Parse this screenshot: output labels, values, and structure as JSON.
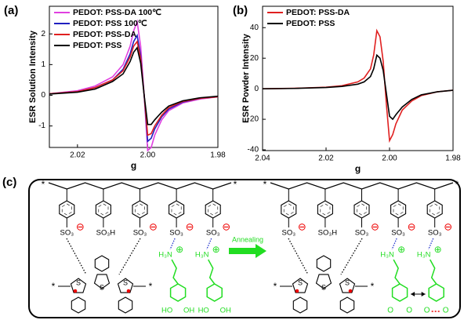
{
  "chart_data": [
    {
      "type": "line",
      "panel_label": "(a)",
      "y_label": "ESR Solution Intensity",
      "x_label": "g",
      "x": [
        2.028,
        2.02,
        2.015,
        2.01,
        2.007,
        2.005,
        2.004,
        2.003,
        2.002,
        2.001,
        2.0,
        1.999,
        1.998,
        1.996,
        1.994,
        1.99,
        1.985,
        1.98
      ],
      "series": [
        {
          "name": "PEDOT: PSS-DA 100℃",
          "color": "#e040e0",
          "values": [
            0.05,
            0.15,
            0.3,
            0.6,
            1.0,
            1.6,
            2.1,
            2.4,
            1.6,
            0.0,
            -1.8,
            -1.7,
            -1.3,
            -0.8,
            -0.5,
            -0.25,
            -0.12,
            -0.05
          ]
        },
        {
          "name": "PEDOT: PSS 100℃",
          "color": "#2020c0",
          "values": [
            0.05,
            0.12,
            0.25,
            0.5,
            0.85,
            1.35,
            1.75,
            1.95,
            1.3,
            0.0,
            -1.5,
            -1.4,
            -1.1,
            -0.7,
            -0.45,
            -0.22,
            -0.1,
            -0.05
          ]
        },
        {
          "name": "PEDOT: PSS-DA",
          "color": "#e02020",
          "values": [
            0.05,
            0.12,
            0.25,
            0.5,
            0.8,
            1.25,
            1.6,
            1.75,
            1.2,
            0.0,
            -1.3,
            -1.25,
            -1.0,
            -0.65,
            -0.4,
            -0.2,
            -0.1,
            -0.05
          ]
        },
        {
          "name": "PEDOT: PSS",
          "color": "#000000",
          "values": [
            0.04,
            0.1,
            0.2,
            0.45,
            0.7,
            1.1,
            1.4,
            1.55,
            1.05,
            0.0,
            -0.95,
            -0.95,
            -0.8,
            -0.55,
            -0.35,
            -0.18,
            -0.08,
            -0.03
          ]
        }
      ],
      "xlim": [
        2.028,
        1.98
      ],
      "xticks": [
        2.02,
        {
          "value": 2.0,
          "label": "2.00"
        },
        1.98
      ],
      "ylim": [
        -1.7,
        2.9
      ],
      "yticks": [
        -1,
        0,
        1,
        2
      ],
      "legend": "upper left"
    },
    {
      "type": "line",
      "panel_label": "(b)",
      "y_label": "ESR Powder Intensity",
      "x_label": "g",
      "x": [
        2.04,
        2.03,
        2.02,
        2.015,
        2.01,
        2.008,
        2.006,
        2.005,
        2.004,
        2.003,
        2.002,
        2.001,
        2.0,
        1.999,
        1.998,
        1.996,
        1.993,
        1.99,
        1.985,
        1.98
      ],
      "series": [
        {
          "name": "PEDOT: PSS-DA",
          "color": "#e02020",
          "values": [
            0,
            0.3,
            1,
            2,
            4.5,
            7,
            13,
            22,
            38,
            34,
            18,
            -10,
            -34,
            -30,
            -23,
            -14,
            -8,
            -4.5,
            -2,
            -1
          ]
        },
        {
          "name": "PEDOT: PSS",
          "color": "#000000",
          "values": [
            0,
            0.2,
            0.8,
            1.5,
            3,
            4.5,
            8,
            13,
            22,
            20,
            12,
            -3,
            -18,
            -20,
            -17,
            -12,
            -7,
            -4,
            -2,
            -1
          ]
        }
      ],
      "xlim": [
        2.04,
        1.98
      ],
      "xticks": [
        2.04,
        2.02,
        {
          "value": 2.0,
          "label": "2.00"
        },
        1.98
      ],
      "ylim": [
        -40.5,
        54
      ],
      "yticks": [
        -40,
        -20,
        0,
        20,
        40
      ],
      "legend": "upper left"
    }
  ],
  "diagram": {
    "panel_label": "(c)",
    "annealing": "Annealing",
    "star": "*",
    "sulfonate": "SO₃",
    "sulfonic_acid": "SO₃H",
    "minus": "⊖",
    "plus": "⊕",
    "ammonium": "H₃N",
    "hydroxyl_left": "HO",
    "hydroxyl_right": "OH",
    "sulfur": "S",
    "oxygen": "O"
  }
}
